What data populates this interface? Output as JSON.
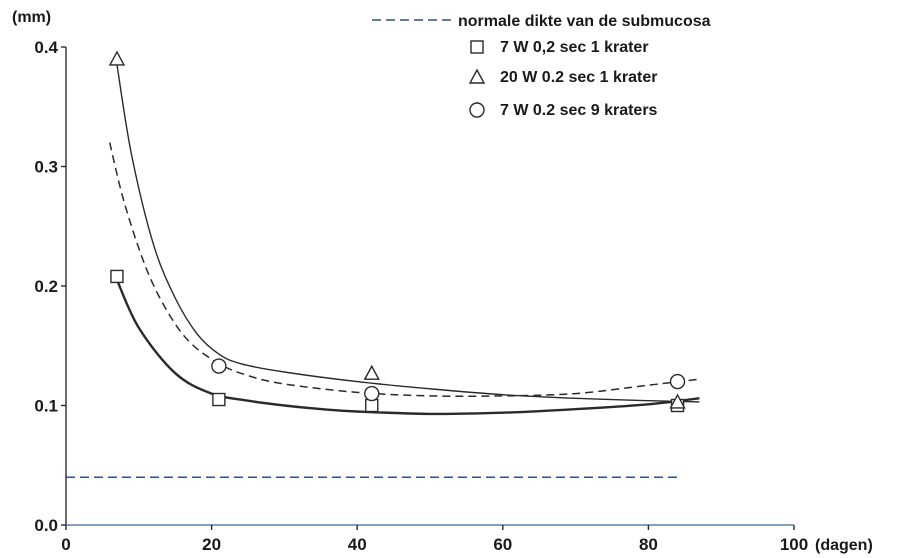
{
  "chart_data": {
    "type": "scatter",
    "title": "",
    "ylabel": "(mm)",
    "xlabel": "(dagen)",
    "xlim": [
      0,
      100
    ],
    "ylim": [
      0.0,
      0.4
    ],
    "x_ticks": [
      "0",
      "20",
      "40",
      "60",
      "80",
      "100"
    ],
    "y_ticks": [
      "0.0",
      "0.1",
      "0.2",
      "0.3",
      "0.4"
    ],
    "grid": false,
    "legend_position": "top-right",
    "reference_line": {
      "label": "normale dikte van de submucosa",
      "y": 0.04,
      "x_range": [
        0,
        84
      ],
      "style": "dashed",
      "color": "#2f4f8a"
    },
    "series": [
      {
        "name": "7 W 0,2 sec 1 krater",
        "marker": "square",
        "x": [
          7,
          21,
          42,
          84
        ],
        "y": [
          0.208,
          0.105,
          0.1,
          0.1
        ],
        "fit_curve": {
          "x": [
            7,
            10,
            15,
            20,
            25,
            30,
            35,
            40,
            50,
            60,
            70,
            80,
            87
          ],
          "y": [
            0.205,
            0.165,
            0.127,
            0.11,
            0.104,
            0.1,
            0.097,
            0.095,
            0.093,
            0.094,
            0.097,
            0.101,
            0.106
          ]
        }
      },
      {
        "name": "20 W 0.2 sec 1 krater",
        "marker": "triangle",
        "x": [
          7,
          42,
          84
        ],
        "y": [
          0.39,
          0.127,
          0.103
        ],
        "fit_curve": {
          "x": [
            7,
            9,
            12,
            15,
            18,
            21,
            24,
            30,
            40,
            50,
            60,
            70,
            80,
            87
          ],
          "y": [
            0.385,
            0.31,
            0.235,
            0.19,
            0.16,
            0.143,
            0.135,
            0.128,
            0.12,
            0.114,
            0.109,
            0.106,
            0.104,
            0.103
          ]
        }
      },
      {
        "name": "7 W 0.2 sec 9 kraters",
        "marker": "circle",
        "x": [
          21,
          42,
          84
        ],
        "y": [
          0.133,
          0.11,
          0.12
        ],
        "fit_curve": {
          "x": [
            6,
            8,
            11,
            14,
            17,
            21,
            25,
            30,
            40,
            50,
            60,
            70,
            80,
            87
          ],
          "y": [
            0.32,
            0.27,
            0.215,
            0.178,
            0.153,
            0.135,
            0.125,
            0.118,
            0.111,
            0.108,
            0.108,
            0.11,
            0.117,
            0.122
          ],
          "style": "dashed"
        }
      }
    ]
  }
}
